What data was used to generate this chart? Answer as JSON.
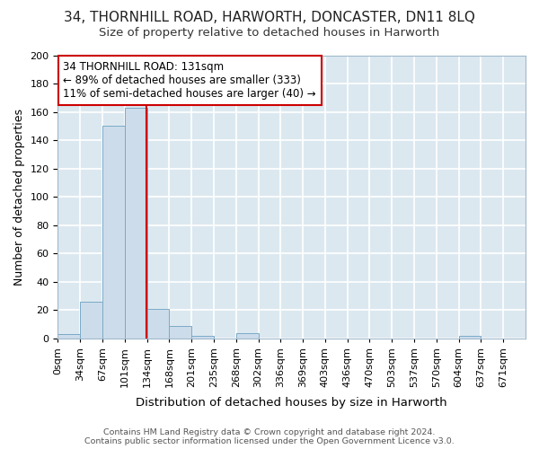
{
  "title": "34, THORNHILL ROAD, HARWORTH, DONCASTER, DN11 8LQ",
  "subtitle": "Size of property relative to detached houses in Harworth",
  "xlabel": "Distribution of detached houses by size in Harworth",
  "ylabel": "Number of detached properties",
  "bin_edges": [
    0,
    33,
    66,
    99,
    132,
    165,
    198,
    231,
    264,
    297,
    330,
    363,
    396,
    429,
    462,
    495,
    528,
    561,
    594,
    627,
    660
  ],
  "bin_labels": [
    "0sqm",
    "34sqm",
    "67sqm",
    "101sqm",
    "134sqm",
    "168sqm",
    "201sqm",
    "235sqm",
    "268sqm",
    "302sqm",
    "336sqm",
    "369sqm",
    "403sqm",
    "436sqm",
    "470sqm",
    "503sqm",
    "537sqm",
    "570sqm",
    "604sqm",
    "637sqm",
    "671sqm"
  ],
  "counts": [
    3,
    26,
    150,
    163,
    21,
    9,
    2,
    0,
    4,
    0,
    0,
    0,
    0,
    0,
    0,
    0,
    0,
    0,
    2,
    0
  ],
  "bar_color": "#cddcea",
  "bar_edge_color": "#7aaac8",
  "property_size": 131,
  "vline_color": "#cc0000",
  "annotation_line1": "34 THORNHILL ROAD: 131sqm",
  "annotation_line2": "← 89% of detached houses are smaller (333)",
  "annotation_line3": "11% of semi-detached houses are larger (40) →",
  "annotation_box_color": "#ffffff",
  "annotation_box_edge": "#cc0000",
  "ylim": [
    0,
    200
  ],
  "yticks": [
    0,
    20,
    40,
    60,
    80,
    100,
    120,
    140,
    160,
    180,
    200
  ],
  "plot_bg_color": "#dce8f0",
  "fig_bg_color": "#ffffff",
  "grid_color": "#ffffff",
  "footer": "Contains HM Land Registry data © Crown copyright and database right 2024.\nContains public sector information licensed under the Open Government Licence v3.0.",
  "title_fontsize": 11,
  "subtitle_fontsize": 9.5,
  "ylabel_fontsize": 9,
  "xlabel_fontsize": 9.5,
  "tick_fontsize": 8
}
